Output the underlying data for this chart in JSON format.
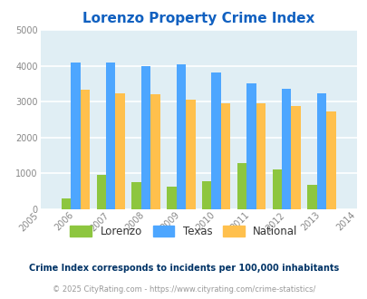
{
  "title": "Lorenzo Property Crime Index",
  "years": [
    2005,
    2006,
    2007,
    2008,
    2009,
    2010,
    2011,
    2012,
    2013,
    2014
  ],
  "bar_years": [
    2006,
    2007,
    2008,
    2009,
    2010,
    2011,
    2012,
    2013
  ],
  "lorenzo": [
    300,
    950,
    760,
    630,
    790,
    1300,
    1100,
    680
  ],
  "texas": [
    4080,
    4100,
    4000,
    4030,
    3810,
    3500,
    3370,
    3240
  ],
  "national": [
    3340,
    3240,
    3200,
    3060,
    2960,
    2950,
    2890,
    2720
  ],
  "lorenzo_color": "#8DC63F",
  "texas_color": "#4DA6FF",
  "national_color": "#FFC04D",
  "bg_color": "#E0EEF4",
  "title_color": "#1060C0",
  "ylim": [
    0,
    5000
  ],
  "yticks": [
    0,
    1000,
    2000,
    3000,
    4000,
    5000
  ],
  "legend_labels": [
    "Lorenzo",
    "Texas",
    "National"
  ],
  "footnote1": "Crime Index corresponds to incidents per 100,000 inhabitants",
  "footnote2": "© 2025 CityRating.com - https://www.cityrating.com/crime-statistics/",
  "footnote1_color": "#003366",
  "footnote2_color": "#999999",
  "bar_width": 0.27
}
